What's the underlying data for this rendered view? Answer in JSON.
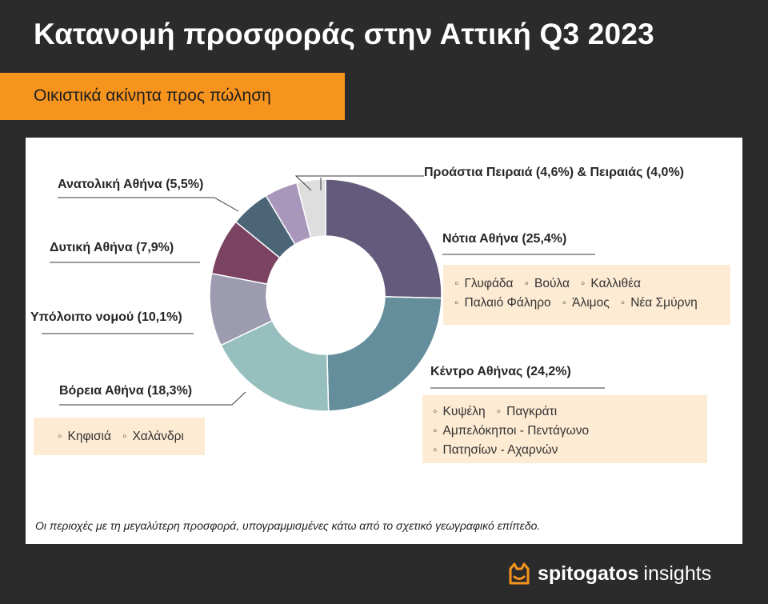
{
  "title": "Κατανομή προσφοράς στην Αττική Q3 2023",
  "subtitle": "Οικιστικά ακίνητα προς πώληση",
  "footnote": "Οι περιοχές με τη μεγαλύτερη προσφορά, υπογραμμισμένες κάτω από το σχετικό γεωγραφικό επίπεδο.",
  "brand": {
    "name_bold": "spitogatos",
    "name_light": "insights",
    "logo_icon": "cat-head-icon",
    "logo_color": "#f7941d"
  },
  "colors": {
    "accent": "#f7941d",
    "background": "#2b2b2b",
    "panel": "#ffffff",
    "box": "#fdebd3"
  },
  "chart_data": {
    "type": "pie",
    "donut": true,
    "slices": [
      {
        "label": "Νότια Αθήνα (25,4%)",
        "value": 25.4,
        "color": "#635a7c"
      },
      {
        "label": "Κέντρο Αθήνας (24,2%)",
        "value": 24.2,
        "color": "#658e9c"
      },
      {
        "label": "Βόρεια Αθήνα (18,3%)",
        "value": 18.3,
        "color": "#96bfbe"
      },
      {
        "label": "Υπόλοιπο νομού (10,1%)",
        "value": 10.1,
        "color": "#9c9bb0"
      },
      {
        "label": "Δυτική Αθήνα (7,9%)",
        "value": 7.9,
        "color": "#7b4361"
      },
      {
        "label": "Ανατολική Αθήνα (5,5%)",
        "value": 5.5,
        "color": "#4b6577"
      },
      {
        "label": "Προάστια Πειραιά",
        "value": 4.6,
        "color": "#a896bb"
      },
      {
        "label": "Πειραιάς",
        "value": 4.0,
        "color": "#dedede"
      }
    ],
    "combined_label": "Προάστια Πειραιά (4,6%) & Πειραιάς (4,0%)",
    "region_boxes": {
      "notia": {
        "rows": [
          [
            "Γλυφάδα",
            "Βούλα",
            "Καλλιθέα"
          ],
          [
            "Παλαιό Φάληρο",
            "Άλιμος",
            "Νέα Σμύρνη"
          ]
        ]
      },
      "kentro": {
        "rows": [
          [
            "Κυψέλη",
            "Παγκράτι"
          ],
          [
            "Αμπελόκηποι - Πεντάγωνο"
          ],
          [
            "Πατησίων - Αχαρνών"
          ]
        ]
      },
      "voreia": {
        "rows": [
          [
            "Κηφισιά",
            "Χαλάνδρι"
          ]
        ]
      }
    }
  }
}
